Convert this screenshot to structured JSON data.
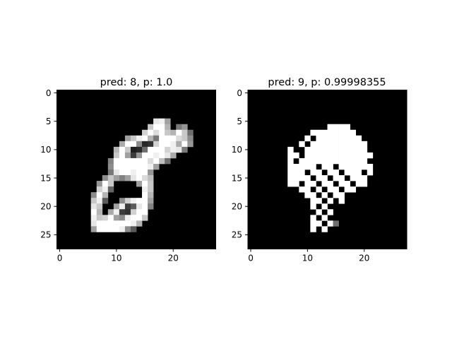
{
  "chart_data": [
    {
      "type": "heatmap",
      "title": "pred: 8, p: 1.0",
      "colormap": "gray",
      "grid": false,
      "xlim": [
        0,
        27
      ],
      "ylim": [
        27,
        0
      ],
      "xticks": [
        0,
        10,
        20
      ],
      "yticks": [
        0,
        5,
        10,
        15,
        20,
        25
      ],
      "shape": [
        28,
        28
      ],
      "cells": [
        [
          5,
          17,
          230
        ],
        [
          5,
          18,
          240
        ],
        [
          5,
          19,
          160
        ],
        [
          6,
          16,
          200
        ],
        [
          6,
          17,
          255
        ],
        [
          6,
          18,
          255
        ],
        [
          6,
          19,
          180
        ],
        [
          6,
          21,
          120
        ],
        [
          6,
          22,
          150
        ],
        [
          7,
          15,
          210
        ],
        [
          7,
          16,
          255
        ],
        [
          7,
          17,
          220
        ],
        [
          7,
          18,
          255
        ],
        [
          7,
          19,
          200
        ],
        [
          7,
          20,
          180
        ],
        [
          7,
          21,
          255
        ],
        [
          7,
          22,
          200
        ],
        [
          7,
          23,
          110
        ],
        [
          8,
          12,
          160
        ],
        [
          8,
          13,
          200
        ],
        [
          8,
          14,
          240
        ],
        [
          8,
          15,
          255
        ],
        [
          8,
          16,
          180
        ],
        [
          8,
          17,
          120
        ],
        [
          8,
          18,
          255
        ],
        [
          8,
          19,
          255
        ],
        [
          8,
          20,
          255
        ],
        [
          8,
          21,
          220
        ],
        [
          8,
          22,
          200
        ],
        [
          8,
          23,
          140
        ],
        [
          9,
          11,
          170
        ],
        [
          9,
          12,
          255
        ],
        [
          9,
          13,
          255
        ],
        [
          9,
          14,
          140
        ],
        [
          9,
          15,
          40
        ],
        [
          9,
          16,
          50
        ],
        [
          9,
          17,
          210
        ],
        [
          9,
          18,
          255
        ],
        [
          9,
          19,
          255
        ],
        [
          9,
          20,
          240
        ],
        [
          9,
          21,
          170
        ],
        [
          9,
          22,
          255
        ],
        [
          9,
          23,
          150
        ],
        [
          10,
          10,
          180
        ],
        [
          10,
          11,
          255
        ],
        [
          10,
          12,
          200
        ],
        [
          10,
          13,
          30
        ],
        [
          10,
          14,
          40
        ],
        [
          10,
          15,
          110
        ],
        [
          10,
          16,
          255
        ],
        [
          10,
          17,
          255
        ],
        [
          10,
          18,
          255
        ],
        [
          10,
          19,
          210
        ],
        [
          10,
          20,
          240
        ],
        [
          10,
          21,
          230
        ],
        [
          10,
          22,
          120
        ],
        [
          11,
          10,
          200
        ],
        [
          11,
          11,
          255
        ],
        [
          11,
          12,
          160
        ],
        [
          11,
          13,
          60
        ],
        [
          11,
          14,
          150
        ],
        [
          11,
          15,
          255
        ],
        [
          11,
          16,
          255
        ],
        [
          11,
          17,
          240
        ],
        [
          11,
          18,
          255
        ],
        [
          11,
          19,
          230
        ],
        [
          11,
          20,
          170
        ],
        [
          12,
          9,
          130
        ],
        [
          12,
          10,
          255
        ],
        [
          12,
          11,
          255
        ],
        [
          12,
          12,
          255
        ],
        [
          12,
          13,
          255
        ],
        [
          12,
          14,
          255
        ],
        [
          12,
          15,
          255
        ],
        [
          12,
          16,
          220
        ],
        [
          12,
          17,
          255
        ],
        [
          12,
          18,
          190
        ],
        [
          12,
          19,
          110
        ],
        [
          13,
          9,
          140
        ],
        [
          13,
          10,
          255
        ],
        [
          13,
          11,
          255
        ],
        [
          13,
          12,
          255
        ],
        [
          13,
          13,
          255
        ],
        [
          13,
          14,
          255
        ],
        [
          13,
          15,
          255
        ],
        [
          13,
          16,
          240
        ],
        [
          13,
          17,
          160
        ],
        [
          14,
          9,
          120
        ],
        [
          14,
          10,
          230
        ],
        [
          14,
          11,
          255
        ],
        [
          14,
          12,
          255
        ],
        [
          14,
          13,
          240
        ],
        [
          14,
          14,
          255
        ],
        [
          14,
          15,
          255
        ],
        [
          14,
          16,
          150
        ],
        [
          15,
          8,
          140
        ],
        [
          15,
          9,
          200
        ],
        [
          15,
          10,
          160
        ],
        [
          15,
          11,
          130
        ],
        [
          15,
          12,
          160
        ],
        [
          15,
          13,
          230
        ],
        [
          15,
          14,
          255
        ],
        [
          15,
          15,
          220
        ],
        [
          15,
          16,
          190
        ],
        [
          16,
          7,
          150
        ],
        [
          16,
          8,
          255
        ],
        [
          16,
          9,
          200
        ],
        [
          16,
          14,
          160
        ],
        [
          16,
          15,
          255
        ],
        [
          16,
          16,
          200
        ],
        [
          17,
          7,
          210
        ],
        [
          17,
          8,
          240
        ],
        [
          17,
          9,
          100
        ],
        [
          17,
          15,
          240
        ],
        [
          17,
          16,
          200
        ],
        [
          18,
          6,
          140
        ],
        [
          18,
          7,
          255
        ],
        [
          18,
          8,
          180
        ],
        [
          18,
          15,
          255
        ],
        [
          18,
          16,
          180
        ],
        [
          19,
          6,
          200
        ],
        [
          19,
          7,
          240
        ],
        [
          19,
          8,
          90
        ],
        [
          19,
          11,
          140
        ],
        [
          19,
          12,
          210
        ],
        [
          19,
          13,
          240
        ],
        [
          19,
          14,
          255
        ],
        [
          19,
          15,
          255
        ],
        [
          19,
          16,
          160
        ],
        [
          20,
          6,
          230
        ],
        [
          20,
          7,
          200
        ],
        [
          20,
          10,
          160
        ],
        [
          20,
          11,
          240
        ],
        [
          20,
          12,
          60
        ],
        [
          20,
          13,
          90
        ],
        [
          20,
          14,
          230
        ],
        [
          20,
          15,
          255
        ],
        [
          20,
          16,
          130
        ],
        [
          21,
          6,
          255
        ],
        [
          21,
          7,
          180
        ],
        [
          21,
          9,
          170
        ],
        [
          21,
          10,
          240
        ],
        [
          21,
          11,
          60
        ],
        [
          21,
          12,
          50
        ],
        [
          21,
          13,
          210
        ],
        [
          21,
          14,
          255
        ],
        [
          21,
          15,
          255
        ],
        [
          22,
          6,
          240
        ],
        [
          22,
          7,
          200
        ],
        [
          22,
          8,
          210
        ],
        [
          22,
          9,
          255
        ],
        [
          22,
          10,
          160
        ],
        [
          22,
          11,
          140
        ],
        [
          22,
          12,
          240
        ],
        [
          22,
          13,
          255
        ],
        [
          22,
          14,
          255
        ],
        [
          22,
          15,
          200
        ],
        [
          23,
          6,
          230
        ],
        [
          23,
          7,
          255
        ],
        [
          23,
          8,
          255
        ],
        [
          23,
          9,
          255
        ],
        [
          23,
          10,
          255
        ],
        [
          23,
          11,
          255
        ],
        [
          23,
          12,
          255
        ],
        [
          23,
          13,
          240
        ],
        [
          23,
          14,
          180
        ],
        [
          24,
          6,
          160
        ],
        [
          24,
          7,
          255
        ],
        [
          24,
          8,
          255
        ],
        [
          24,
          9,
          255
        ],
        [
          24,
          10,
          255
        ],
        [
          24,
          11,
          240
        ],
        [
          24,
          12,
          140
        ],
        [
          24,
          13,
          90
        ]
      ]
    },
    {
      "type": "heatmap",
      "title": "pred: 9, p: 0.99998355",
      "colormap": "gray",
      "grid": false,
      "xlim": [
        0,
        27
      ],
      "ylim": [
        27,
        0
      ],
      "xticks": [
        0,
        10,
        20
      ],
      "yticks": [
        0,
        5,
        10,
        15,
        20,
        25
      ],
      "shape": [
        28,
        28
      ],
      "rows": {
        "6": [
          [
            14,
            17
          ]
        ],
        "7": [
          [
            11,
            18
          ]
        ],
        "8": [
          [
            10,
            10
          ],
          [
            12,
            19
          ]
        ],
        "9": [
          [
            9,
            9
          ],
          [
            11,
            20
          ]
        ],
        "10": [
          [
            7,
            7
          ],
          [
            10,
            20
          ]
        ],
        "11": [
          [
            7,
            8
          ],
          [
            10,
            21
          ]
        ],
        "12": [
          [
            7,
            7
          ],
          [
            9,
            20
          ]
        ],
        "13": [
          [
            7,
            11
          ],
          [
            13,
            14
          ],
          [
            16,
            21
          ]
        ],
        "14": [
          [
            7,
            9
          ],
          [
            11,
            12
          ],
          [
            14,
            15
          ],
          [
            17,
            19
          ],
          [
            21,
            21
          ]
        ],
        "15": [
          [
            7,
            10
          ],
          [
            12,
            13
          ],
          [
            15,
            16
          ],
          [
            18,
            20
          ]
        ],
        "16": [
          [
            7,
            8
          ],
          [
            10,
            11
          ],
          [
            13,
            14
          ],
          [
            16,
            17
          ],
          [
            19,
            20
          ]
        ],
        "17": [
          [
            9,
            10
          ],
          [
            12,
            12
          ],
          [
            14,
            15
          ],
          [
            17,
            18
          ]
        ],
        "18": [
          [
            10,
            11
          ],
          [
            13,
            13
          ],
          [
            15,
            16
          ]
        ],
        "19": [
          [
            11,
            12
          ],
          [
            14,
            14
          ],
          [
            16,
            16
          ]
        ],
        "20": [
          [
            11,
            11
          ],
          [
            13,
            13
          ]
        ],
        "21": [
          [
            12,
            12
          ],
          [
            14,
            14
          ]
        ],
        "22": [
          [
            11,
            11
          ],
          [
            13,
            13
          ]
        ],
        "23": [
          [
            11,
            12
          ],
          [
            14,
            14
          ]
        ],
        "24": [
          [
            11,
            11
          ],
          [
            13,
            13
          ]
        ]
      },
      "gray_cells": [
        [
          23,
          15,
          110
        ]
      ]
    }
  ]
}
